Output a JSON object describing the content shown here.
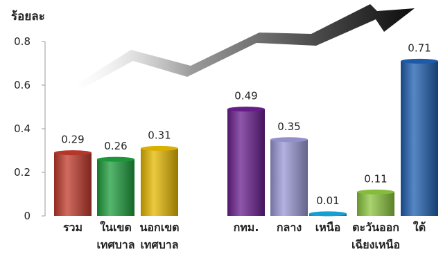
{
  "chart_data": {
    "type": "bar",
    "ylabel": "ร้อยละ",
    "ylim": [
      0,
      0.8
    ],
    "yticks": [
      "0",
      "0.2",
      "0.4",
      "0.6",
      "0.8"
    ],
    "grid": false,
    "categories": [
      [
        "รวม"
      ],
      [
        "ในเขต",
        "เทศบาล"
      ],
      [
        "นอกเขต",
        "เทศบาล"
      ],
      [
        "กทม."
      ],
      [
        "กลาง"
      ],
      [
        "เหนือ"
      ],
      [
        "ตะวันออก",
        "เฉียงเหนือ"
      ],
      [
        "ใต้"
      ]
    ],
    "values": [
      0.29,
      0.26,
      0.31,
      0.49,
      0.35,
      0.01,
      0.11,
      0.71
    ],
    "value_labels": [
      "0.29",
      "0.26",
      "0.31",
      "0.49",
      "0.35",
      "0.01",
      "0.11",
      "0.71"
    ],
    "bar_colors": [
      "#c0392b",
      "#1e9e3e",
      "#e6b800",
      "#6a1f8f",
      "#9a98d6",
      "#17a7dc",
      "#8cc63f",
      "#1f5fb0"
    ],
    "decoration": "upward-trend-arrow"
  }
}
